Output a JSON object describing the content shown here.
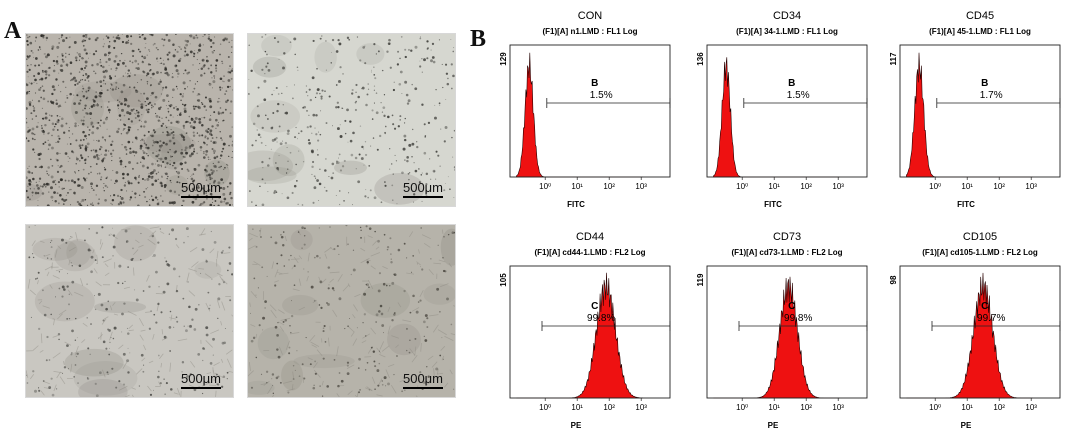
{
  "panel_a": {
    "letter": "A",
    "images": [
      {
        "scale_label": "500μm",
        "tone": "#b9b4ac",
        "speck_density": 1400,
        "speck_color": "#2b2a26"
      },
      {
        "scale_label": "500μm",
        "tone": "#d6d7d0",
        "speck_density": 420,
        "speck_color": "#3a3a36"
      },
      {
        "scale_label": "500μm",
        "tone": "#c9c7c1",
        "speck_density": 260,
        "speck_color": "#4a4a46"
      },
      {
        "scale_label": "500μm",
        "tone": "#b6b3aa",
        "speck_density": 240,
        "speck_color": "#4a4740"
      }
    ]
  },
  "panel_b": {
    "letter": "B",
    "fill_color": "#ee1111",
    "chart_data": [
      {
        "type": "area",
        "title": "CON",
        "subtitle": "(F1)[A] n1.LMD : FL1 Log",
        "xlabel": "FITC",
        "ymax_label": "129",
        "xticks": [
          "10⁰",
          "10¹",
          "10²",
          "10³"
        ],
        "gate_label": "B",
        "gate_percent": "1.5%",
        "peak_log": -0.5,
        "peak_width": 0.13
      },
      {
        "type": "area",
        "title": "CD34",
        "subtitle": "(F1)[A] 34-1.LMD : FL1 Log",
        "xlabel": "FITC",
        "ymax_label": "136",
        "xticks": [
          "10⁰",
          "10¹",
          "10²",
          "10³"
        ],
        "gate_label": "B",
        "gate_percent": "1.5%",
        "peak_log": -0.5,
        "peak_width": 0.13
      },
      {
        "type": "area",
        "title": "CD45",
        "subtitle": "(F1)[A] 45-1.LMD : FL1 Log",
        "xlabel": "FITC",
        "ymax_label": "117",
        "xticks": [
          "10⁰",
          "10¹",
          "10²",
          "10³"
        ],
        "gate_label": "B",
        "gate_percent": "1.7%",
        "peak_log": -0.5,
        "peak_width": 0.14
      },
      {
        "type": "area",
        "title": "CD44",
        "subtitle": "(F1)[A] cd44-1.LMD : FL2 Log",
        "xlabel": "PE",
        "ymax_label": "105",
        "xticks": [
          "10⁰",
          "10¹",
          "10²",
          "10³"
        ],
        "gate_label": "C",
        "gate_percent": "99.8%",
        "peak_log": 1.9,
        "peak_width": 0.3
      },
      {
        "type": "area",
        "title": "CD73",
        "subtitle": "(F1)[A] cd73-1.LMD : FL2 Log",
        "xlabel": "PE",
        "ymax_label": "119",
        "xticks": [
          "10⁰",
          "10¹",
          "10²",
          "10³"
        ],
        "gate_label": "C",
        "gate_percent": "99.8%",
        "peak_log": 1.45,
        "peak_width": 0.28
      },
      {
        "type": "area",
        "title": "CD105",
        "subtitle": "(F1)[A] cd105-1.LMD : FL2 Log",
        "xlabel": "PE",
        "ymax_label": "98",
        "xticks": [
          "10⁰",
          "10¹",
          "10²",
          "10³"
        ],
        "gate_label": "C",
        "gate_percent": "99.7%",
        "peak_log": 1.5,
        "peak_width": 0.3
      }
    ]
  }
}
